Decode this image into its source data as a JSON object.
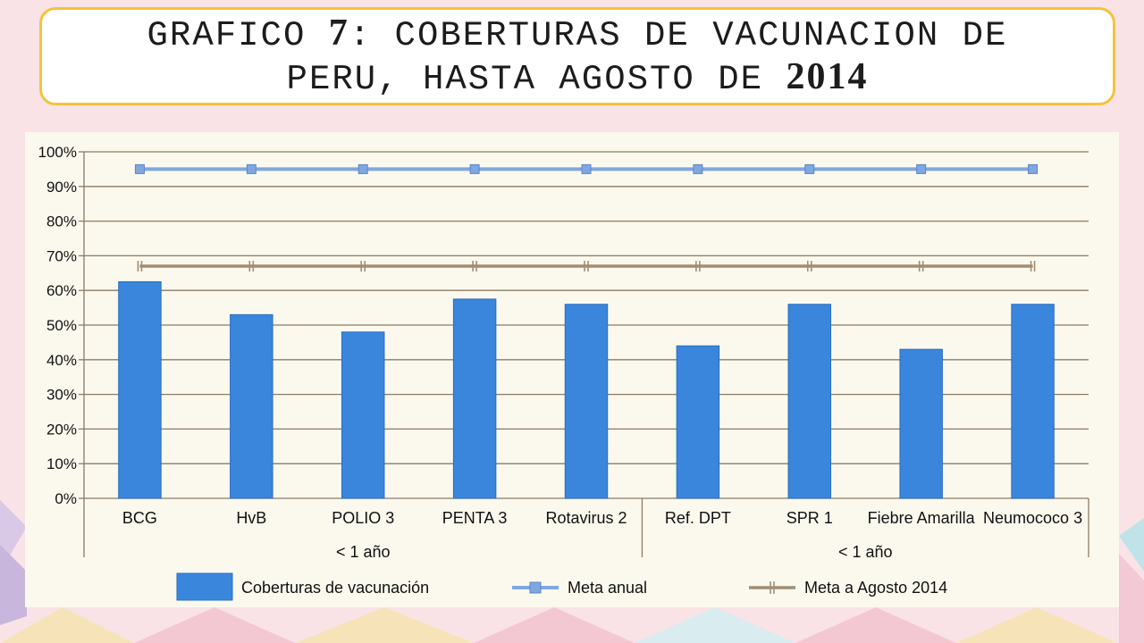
{
  "title": {
    "line1_a": "GRAFICO ",
    "line1_num": "7",
    "line1_b": ": COBERTURAS DE VACUNACION DE",
    "line2_a": "PERU, HASTA AGOSTO DE ",
    "line2_num": "2014"
  },
  "chart_data": {
    "type": "bar",
    "categories": [
      "BCG",
      "HvB",
      "POLIO 3",
      "PENTA 3",
      "Rotavirus 2",
      "Ref. DPT",
      "SPR 1",
      "Fiebre Amarilla",
      "Neumococo 3"
    ],
    "groups": [
      {
        "label": "< 1 año",
        "categories": [
          "BCG",
          "HvB",
          "POLIO 3",
          "PENTA 3",
          "Rotavirus 2"
        ]
      },
      {
        "label": "< 1 año",
        "categories": [
          "Ref. DPT",
          "SPR 1",
          "Fiebre Amarilla",
          "Neumococo 3"
        ]
      }
    ],
    "series": [
      {
        "name": "Coberturas de vacunación",
        "type": "bar",
        "color": "#3a86dd",
        "values": [
          62.5,
          53,
          48,
          57.5,
          56,
          44,
          56,
          43,
          56
        ]
      },
      {
        "name": "Meta anual",
        "type": "line",
        "marker": "square",
        "color": "#7fa7e0",
        "values": [
          95,
          95,
          95,
          95,
          95,
          95,
          95,
          95,
          95
        ]
      },
      {
        "name": "Meta a Agosto 2014",
        "type": "line",
        "marker": "tick",
        "color": "#a08d74",
        "values": [
          67,
          67,
          67,
          67,
          67,
          67,
          67,
          67,
          67
        ]
      }
    ],
    "ylim": [
      0,
      100
    ],
    "yticks": [
      "0%",
      "10%",
      "20%",
      "30%",
      "40%",
      "50%",
      "60%",
      "70%",
      "80%",
      "90%",
      "100%"
    ],
    "grid": true,
    "legend_position": "bottom"
  },
  "colors": {
    "background": "#f9e3e6",
    "title_border": "#f2c43a",
    "panel": "#fbf9ee",
    "grid": "#8c7a64"
  }
}
